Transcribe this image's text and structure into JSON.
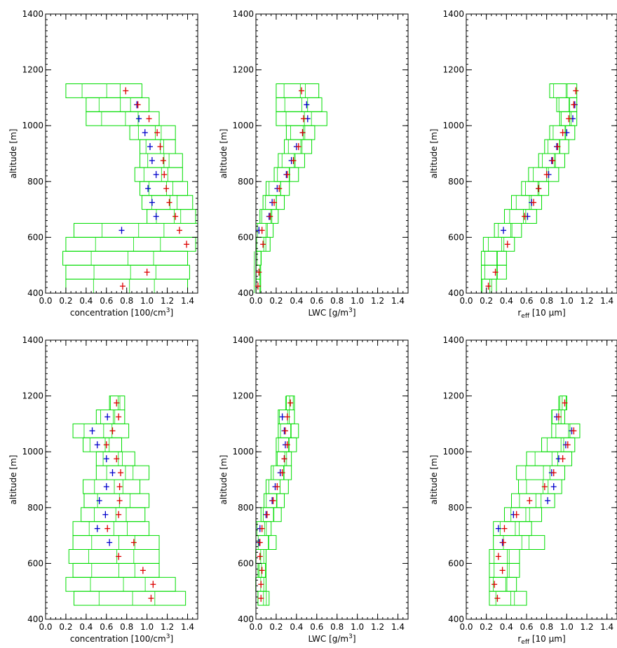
{
  "colors": {
    "box": "#00dd00",
    "red_marker": "#dd0000",
    "blue_marker": "#0000cc",
    "axes": "#000000"
  },
  "chart_data": [
    {
      "type": "scatter",
      "panel": "top-left",
      "ylabel": "altitude [m]",
      "xlabel": "concentration [100/cm3]",
      "xlabel_main": "concentration [100/cm",
      "xlabel_sup": "3",
      "xlabel_end": "]",
      "xlim": [
        0.0,
        1.5
      ],
      "ylim": [
        400,
        1400
      ],
      "xticks": [
        "0.0",
        "0.2",
        "0.4",
        "0.6",
        "0.8",
        "1.0",
        "1.2",
        "1.4"
      ],
      "yticks": [
        "400",
        "600",
        "800",
        "1000",
        "1200",
        "1400"
      ],
      "red": [
        [
          0.79,
          1125
        ],
        [
          0.91,
          1075
        ],
        [
          1.02,
          1025
        ],
        [
          1.1,
          975
        ],
        [
          1.13,
          925
        ],
        [
          1.16,
          875
        ],
        [
          1.17,
          825
        ],
        [
          1.19,
          775
        ],
        [
          1.22,
          725
        ],
        [
          1.28,
          675
        ],
        [
          1.32,
          625
        ],
        [
          1.39,
          575
        ],
        [
          1.0,
          475
        ],
        [
          0.76,
          425
        ]
      ],
      "blue": [
        [
          0.9,
          1075
        ],
        [
          0.92,
          1025
        ],
        [
          0.98,
          975
        ],
        [
          1.03,
          925
        ],
        [
          1.05,
          875
        ],
        [
          1.09,
          825
        ],
        [
          1.01,
          775
        ],
        [
          1.05,
          725
        ],
        [
          1.09,
          675
        ],
        [
          0.75,
          625
        ]
      ],
      "boxes": [
        [
          0.2,
          0.95,
          1100,
          1150
        ],
        [
          0.4,
          1.02,
          1050,
          1100
        ],
        [
          0.4,
          1.12,
          1000,
          1050
        ],
        [
          0.83,
          1.28,
          950,
          1000
        ],
        [
          0.93,
          1.28,
          900,
          950
        ],
        [
          0.93,
          1.35,
          850,
          900
        ],
        [
          0.88,
          1.35,
          800,
          850
        ],
        [
          0.93,
          1.4,
          750,
          800
        ],
        [
          0.95,
          1.45,
          700,
          750
        ],
        [
          1.0,
          1.48,
          650,
          700
        ],
        [
          0.28,
          1.5,
          600,
          650
        ],
        [
          0.2,
          1.48,
          550,
          600
        ],
        [
          0.17,
          1.4,
          500,
          550
        ],
        [
          0.2,
          1.42,
          450,
          500
        ],
        [
          0.2,
          1.4,
          400,
          450
        ]
      ]
    },
    {
      "type": "scatter",
      "panel": "top-middle",
      "ylabel": "altitude [m]",
      "xlabel": "LWC [g/m3]",
      "xlabel_main": "LWC [g/m",
      "xlabel_sup": "3",
      "xlabel_end": "]",
      "xlim": [
        0.0,
        1.5
      ],
      "ylim": [
        400,
        1400
      ],
      "xticks": [
        "0.0",
        "0.2",
        "0.4",
        "0.6",
        "0.8",
        "1.0",
        "1.2",
        "1.4"
      ],
      "yticks": [
        "400",
        "600",
        "800",
        "1000",
        "1200",
        "1400"
      ],
      "red": [
        [
          0.45,
          1125
        ],
        [
          0.47,
          1025
        ],
        [
          0.46,
          975
        ],
        [
          0.42,
          925
        ],
        [
          0.37,
          875
        ],
        [
          0.31,
          825
        ],
        [
          0.23,
          775
        ],
        [
          0.18,
          725
        ],
        [
          0.14,
          675
        ],
        [
          0.06,
          625
        ],
        [
          0.07,
          575
        ],
        [
          0.03,
          475
        ],
        [
          0.02,
          425
        ]
      ],
      "blue": [
        [
          0.5,
          1075
        ],
        [
          0.51,
          1025
        ],
        [
          0.46,
          975
        ],
        [
          0.4,
          925
        ],
        [
          0.35,
          875
        ],
        [
          0.3,
          825
        ],
        [
          0.21,
          775
        ],
        [
          0.16,
          725
        ],
        [
          0.13,
          675
        ],
        [
          0.03,
          625
        ]
      ],
      "boxes": [
        [
          0.2,
          0.62,
          1100,
          1150
        ],
        [
          0.2,
          0.65,
          1050,
          1100
        ],
        [
          0.2,
          0.7,
          1000,
          1050
        ],
        [
          0.3,
          0.58,
          950,
          1000
        ],
        [
          0.28,
          0.55,
          900,
          950
        ],
        [
          0.22,
          0.48,
          850,
          900
        ],
        [
          0.18,
          0.42,
          800,
          850
        ],
        [
          0.1,
          0.33,
          750,
          800
        ],
        [
          0.07,
          0.28,
          700,
          750
        ],
        [
          0.04,
          0.22,
          650,
          700
        ],
        [
          0.0,
          0.17,
          600,
          650
        ],
        [
          0.0,
          0.14,
          550,
          600
        ],
        [
          0.0,
          0.05,
          500,
          550
        ],
        [
          0.0,
          0.04,
          450,
          500
        ],
        [
          0.0,
          0.04,
          400,
          450
        ]
      ]
    },
    {
      "type": "scatter",
      "panel": "top-right",
      "ylabel": "altitude [m]",
      "xlabel": "reff [10 µm]",
      "xlabel_main": "r",
      "xlabel_sub": "eff",
      "xlabel_end": " [10 µm]",
      "xlim": [
        0.0,
        1.5
      ],
      "ylim": [
        400,
        1400
      ],
      "xticks": [
        "0.0",
        "0.2",
        "0.4",
        "0.6",
        "0.8",
        "1.0",
        "1.2",
        "1.4"
      ],
      "yticks": [
        "400",
        "600",
        "800",
        "1000",
        "1200",
        "1400"
      ],
      "red": [
        [
          1.09,
          1125
        ],
        [
          1.07,
          1075
        ],
        [
          1.02,
          1025
        ],
        [
          0.96,
          975
        ],
        [
          0.91,
          925
        ],
        [
          0.86,
          875
        ],
        [
          0.8,
          825
        ],
        [
          0.72,
          775
        ],
        [
          0.67,
          725
        ],
        [
          0.58,
          675
        ],
        [
          0.41,
          575
        ],
        [
          0.29,
          475
        ],
        [
          0.22,
          425
        ]
      ],
      "blue": [
        [
          1.08,
          1075
        ],
        [
          1.06,
          1025
        ],
        [
          1.0,
          975
        ],
        [
          0.9,
          925
        ],
        [
          0.85,
          875
        ],
        [
          0.82,
          825
        ],
        [
          0.72,
          775
        ],
        [
          0.65,
          725
        ],
        [
          0.61,
          675
        ],
        [
          0.37,
          625
        ]
      ],
      "boxes": [
        [
          0.83,
          1.1,
          1100,
          1150
        ],
        [
          0.9,
          1.1,
          1050,
          1100
        ],
        [
          0.93,
          1.1,
          1000,
          1050
        ],
        [
          0.83,
          1.08,
          950,
          1000
        ],
        [
          0.78,
          1.02,
          900,
          950
        ],
        [
          0.72,
          0.98,
          850,
          900
        ],
        [
          0.62,
          0.92,
          800,
          850
        ],
        [
          0.55,
          0.82,
          750,
          800
        ],
        [
          0.45,
          0.75,
          700,
          750
        ],
        [
          0.38,
          0.7,
          650,
          700
        ],
        [
          0.28,
          0.55,
          600,
          650
        ],
        [
          0.17,
          0.48,
          550,
          600
        ],
        [
          0.15,
          0.4,
          500,
          550
        ],
        [
          0.15,
          0.4,
          450,
          500
        ],
        [
          0.15,
          0.3,
          400,
          450
        ]
      ]
    },
    {
      "type": "scatter",
      "panel": "bottom-left",
      "ylabel": "altitude [m]",
      "xlabel": "concentration [100/cm3]",
      "xlabel_main": "concentration [100/cm",
      "xlabel_sup": "3",
      "xlabel_end": "]",
      "xlim": [
        0.0,
        1.5
      ],
      "ylim": [
        400,
        1400
      ],
      "xticks": [
        "0.0",
        "0.2",
        "0.4",
        "0.6",
        "0.8",
        "1.0",
        "1.2",
        "1.4"
      ],
      "yticks": [
        "400",
        "600",
        "800",
        "1000",
        "1200",
        "1400"
      ],
      "red": [
        [
          0.7,
          1175
        ],
        [
          0.72,
          1125
        ],
        [
          0.66,
          1075
        ],
        [
          0.6,
          1025
        ],
        [
          0.7,
          975
        ],
        [
          0.74,
          925
        ],
        [
          0.73,
          875
        ],
        [
          0.73,
          825
        ],
        [
          0.72,
          775
        ],
        [
          0.61,
          725
        ],
        [
          0.87,
          675
        ],
        [
          0.72,
          625
        ],
        [
          0.96,
          575
        ],
        [
          1.06,
          525
        ],
        [
          1.04,
          475
        ]
      ],
      "blue": [
        [
          0.61,
          1125
        ],
        [
          0.46,
          1075
        ],
        [
          0.51,
          1025
        ],
        [
          0.6,
          975
        ],
        [
          0.66,
          925
        ],
        [
          0.6,
          875
        ],
        [
          0.53,
          825
        ],
        [
          0.59,
          775
        ],
        [
          0.51,
          725
        ],
        [
          0.63,
          675
        ]
      ],
      "boxes": [
        [
          0.63,
          0.78,
          1150,
          1200
        ],
        [
          0.5,
          0.78,
          1100,
          1150
        ],
        [
          0.27,
          0.82,
          1050,
          1100
        ],
        [
          0.37,
          0.75,
          1000,
          1050
        ],
        [
          0.5,
          0.88,
          950,
          1000
        ],
        [
          0.5,
          1.02,
          900,
          950
        ],
        [
          0.37,
          0.93,
          850,
          900
        ],
        [
          0.38,
          1.02,
          800,
          850
        ],
        [
          0.35,
          0.98,
          750,
          800
        ],
        [
          0.27,
          1.02,
          700,
          750
        ],
        [
          0.27,
          1.12,
          650,
          700
        ],
        [
          0.23,
          1.12,
          600,
          650
        ],
        [
          0.27,
          1.12,
          550,
          600
        ],
        [
          0.2,
          1.28,
          500,
          550
        ],
        [
          0.28,
          1.38,
          450,
          500
        ]
      ]
    },
    {
      "type": "scatter",
      "panel": "bottom-middle",
      "ylabel": "altitude [m]",
      "xlabel": "LWC [g/m3]",
      "xlabel_main": "LWC [g/m",
      "xlabel_sup": "3",
      "xlabel_end": "]",
      "xlim": [
        0.0,
        1.5
      ],
      "ylim": [
        400,
        1400
      ],
      "xticks": [
        "0.0",
        "0.2",
        "0.4",
        "0.6",
        "0.8",
        "1.0",
        "1.2",
        "1.4"
      ],
      "yticks": [
        "400",
        "600",
        "800",
        "1000",
        "1200",
        "1400"
      ],
      "red": [
        [
          0.34,
          1175
        ],
        [
          0.31,
          1125
        ],
        [
          0.29,
          1075
        ],
        [
          0.31,
          1025
        ],
        [
          0.28,
          975
        ],
        [
          0.26,
          925
        ],
        [
          0.21,
          875
        ],
        [
          0.17,
          825
        ],
        [
          0.11,
          775
        ],
        [
          0.06,
          725
        ],
        [
          0.04,
          675
        ],
        [
          0.04,
          625
        ],
        [
          0.06,
          575
        ],
        [
          0.05,
          525
        ],
        [
          0.05,
          475
        ]
      ],
      "blue": [
        [
          0.26,
          1125
        ],
        [
          0.28,
          1075
        ],
        [
          0.29,
          1025
        ],
        [
          0.28,
          975
        ],
        [
          0.24,
          925
        ],
        [
          0.19,
          875
        ],
        [
          0.16,
          825
        ],
        [
          0.1,
          775
        ],
        [
          0.04,
          725
        ],
        [
          0.03,
          675
        ]
      ],
      "boxes": [
        [
          0.3,
          0.38,
          1150,
          1200
        ],
        [
          0.22,
          0.38,
          1100,
          1150
        ],
        [
          0.22,
          0.42,
          1050,
          1100
        ],
        [
          0.2,
          0.4,
          1000,
          1050
        ],
        [
          0.2,
          0.35,
          950,
          1000
        ],
        [
          0.15,
          0.35,
          900,
          950
        ],
        [
          0.1,
          0.32,
          850,
          900
        ],
        [
          0.08,
          0.28,
          800,
          850
        ],
        [
          0.05,
          0.25,
          750,
          800
        ],
        [
          0.0,
          0.15,
          700,
          750
        ],
        [
          0.0,
          0.2,
          650,
          700
        ],
        [
          0.0,
          0.1,
          600,
          650
        ],
        [
          0.03,
          0.1,
          550,
          600
        ],
        [
          0.0,
          0.1,
          500,
          550
        ],
        [
          0.02,
          0.13,
          450,
          500
        ]
      ]
    },
    {
      "type": "scatter",
      "panel": "bottom-right",
      "ylabel": "altitude [m]",
      "xlabel": "reff [10 µm]",
      "xlabel_main": "r",
      "xlabel_sub": "eff",
      "xlabel_end": " [10 µm]",
      "xlim": [
        0.0,
        1.5
      ],
      "ylim": [
        400,
        1400
      ],
      "xticks": [
        "0.0",
        "0.2",
        "0.4",
        "0.6",
        "0.8",
        "1.0",
        "1.2",
        "1.4"
      ],
      "yticks": [
        "400",
        "600",
        "800",
        "1000",
        "1200",
        "1400"
      ],
      "red": [
        [
          0.98,
          1175
        ],
        [
          0.92,
          1125
        ],
        [
          1.07,
          1075
        ],
        [
          1.01,
          1025
        ],
        [
          0.96,
          975
        ],
        [
          0.87,
          925
        ],
        [
          0.78,
          875
        ],
        [
          0.63,
          825
        ],
        [
          0.5,
          775
        ],
        [
          0.38,
          725
        ],
        [
          0.37,
          675
        ],
        [
          0.32,
          625
        ],
        [
          0.36,
          575
        ],
        [
          0.28,
          525
        ],
        [
          0.31,
          475
        ]
      ],
      "blue": [
        [
          0.9,
          1125
        ],
        [
          1.05,
          1075
        ],
        [
          0.99,
          1025
        ],
        [
          0.92,
          975
        ],
        [
          0.85,
          925
        ],
        [
          0.87,
          875
        ],
        [
          0.81,
          825
        ],
        [
          0.47,
          775
        ],
        [
          0.32,
          725
        ],
        [
          0.36,
          675
        ]
      ],
      "boxes": [
        [
          0.93,
          1.0,
          1150,
          1200
        ],
        [
          0.85,
          0.98,
          1100,
          1150
        ],
        [
          0.85,
          1.13,
          1050,
          1100
        ],
        [
          0.75,
          1.08,
          1000,
          1050
        ],
        [
          0.6,
          1.05,
          950,
          1000
        ],
        [
          0.5,
          0.98,
          900,
          950
        ],
        [
          0.52,
          0.95,
          850,
          900
        ],
        [
          0.45,
          0.88,
          800,
          850
        ],
        [
          0.38,
          0.75,
          750,
          800
        ],
        [
          0.27,
          0.65,
          700,
          750
        ],
        [
          0.27,
          0.78,
          650,
          700
        ],
        [
          0.23,
          0.53,
          600,
          650
        ],
        [
          0.23,
          0.53,
          550,
          600
        ],
        [
          0.23,
          0.5,
          500,
          550
        ],
        [
          0.23,
          0.6,
          450,
          500
        ]
      ]
    }
  ]
}
